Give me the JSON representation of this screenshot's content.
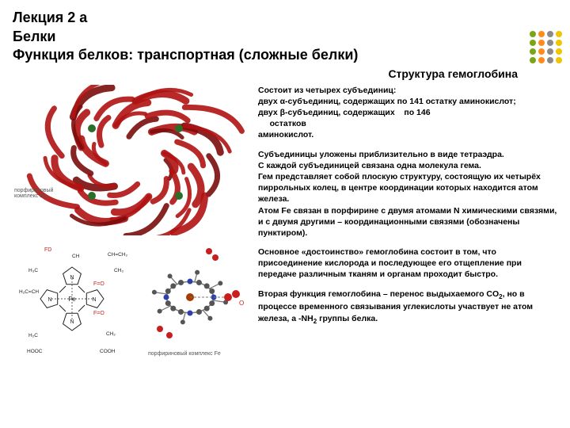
{
  "header": {
    "line1": "Лекция 2 а",
    "line2": "Белки",
    "line3": "Функция белков: транспортная (сложные белки)"
  },
  "subtitle": "Структура гемоглобина",
  "dots": {
    "colors_row": [
      "#7aa516",
      "#ff8c1a",
      "#8a8a8a",
      "#f2c400"
    ],
    "rows": 4,
    "cols": 4,
    "size": 8
  },
  "body": {
    "p1": {
      "l1": "Состоит из четырех субъединиц:",
      "l2": "двух α-субъединиц, содержащих по 141 остатку аминокислот;",
      "l3a": "двух β-субъединиц, содержащих",
      "l3b": "по 146",
      "l4": "остатков",
      "l5": "аминокислот."
    },
    "p2": {
      "l1": "Субъединицы уложены приблизительно в виде тетраэдра.",
      "l2": "С каждой субъединицей связана одна молекула гема.",
      "l3": "Гем представляет собой плоскую структуру, состоящую их четырёх пиррольных колец, в центре координации которых находится атом железа.",
      "l4": "Атом Fe связан в порфирине с двумя атомами N химическими связями, и с двумя другими – координационными связями (обозначены пунктиром)."
    },
    "p3": "Основное «достоинство» гемоглобина состоит в том, что присоединение кислорода и последующее его отщепление при передаче различным тканям и органам проходит быстро.",
    "p4": {
      "a": "Вторая функция гемоглобина – перенос выдыхаемого CO",
      "b": ", но в процессе временного связывания углекислоты участвует не атом железа, а -NH",
      "c": " группы белка."
    }
  },
  "figures": {
    "protein": {
      "ribbon_color": "#b01212",
      "ribbon_dark": "#7a0c0c",
      "heme_color": "#2a6e2a",
      "bg": "#ffffff",
      "label": "порфириновый комплекс Fe",
      "num_ribbons": 44
    },
    "chem_left": {
      "stroke": "#222",
      "fe_text": "Fe",
      "ch_labels": [
        "H₃C",
        "CH₃",
        "CH=CH₂",
        "H₂C=CH",
        "H₂C",
        "CH₂",
        "CH",
        "HOOC",
        "COOH",
        "N",
        "N",
        "N",
        "N"
      ],
      "fo_label": "F=O",
      "fo_color": "#c81e1e"
    },
    "chem_right": {
      "carbon": "#555555",
      "nitrogen": "#2b3fb0",
      "oxygen": "#c81e1e",
      "iron": "#a63d00",
      "bond": "#777777",
      "o_label": "O",
      "label": "порфириновый комплекс Fe"
    }
  }
}
